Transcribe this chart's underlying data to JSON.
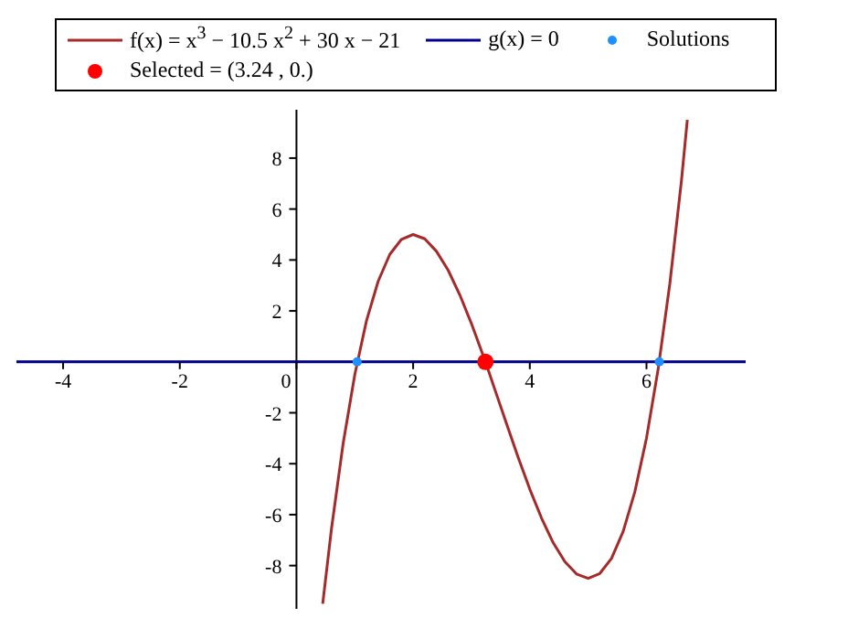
{
  "chart_data": {
    "type": "line",
    "legend": "top",
    "xlim": [
      -4.8,
      7.7
    ],
    "ylim": [
      -9.7,
      9.9
    ],
    "xticks": [
      -4,
      -2,
      0,
      2,
      4,
      6
    ],
    "yticks": [
      -8,
      -6,
      -4,
      -2,
      2,
      4,
      6,
      8
    ],
    "series": [
      {
        "name": "f(x) = x$^{3}$ − 10.5 x$^{2}$ + 30 x − 21",
        "color": "#a52a2a",
        "marker": "none",
        "x": [
          0.45,
          0.6,
          0.8,
          1.0,
          1.2,
          1.4,
          1.6,
          1.8,
          2.0,
          2.2,
          2.4,
          2.6,
          2.8,
          3.0,
          3.24,
          3.4,
          3.6,
          3.8,
          4.0,
          4.2,
          4.4,
          4.6,
          4.8,
          5.0,
          5.2,
          5.4,
          5.6,
          5.8,
          6.0,
          6.2,
          6.4,
          6.6,
          6.7
        ],
        "values": [
          -9.5,
          -6.56,
          -3.21,
          -0.5,
          1.61,
          3.16,
          4.22,
          4.81,
          5,
          4.83,
          4.34,
          3.6,
          2.63,
          1.5,
          0,
          -1.08,
          -2.42,
          -3.75,
          -5,
          -6.13,
          -7.1,
          -7.84,
          -8.33,
          -8.5,
          -8.31,
          -7.72,
          -6.66,
          -5.11,
          -3,
          -0.29,
          3.06,
          7.12,
          9.5
        ]
      },
      {
        "name": "g(x) = 0",
        "color": "#00008b",
        "marker": "none",
        "x": [
          -4.8,
          7.7
        ],
        "values": [
          0,
          0
        ]
      },
      {
        "name": "Solutions",
        "type": "scatter",
        "color": "#1e90ff",
        "marker": "circle",
        "x": [
          1.04,
          3.24,
          6.22
        ],
        "values": [
          0,
          null,
          0
        ]
      },
      {
        "name": "Selected = (3.24 , 0.)",
        "type": "scatter",
        "color": "#ff0000",
        "marker": "circle",
        "x": [
          3.24
        ],
        "values": [
          0
        ]
      }
    ]
  }
}
